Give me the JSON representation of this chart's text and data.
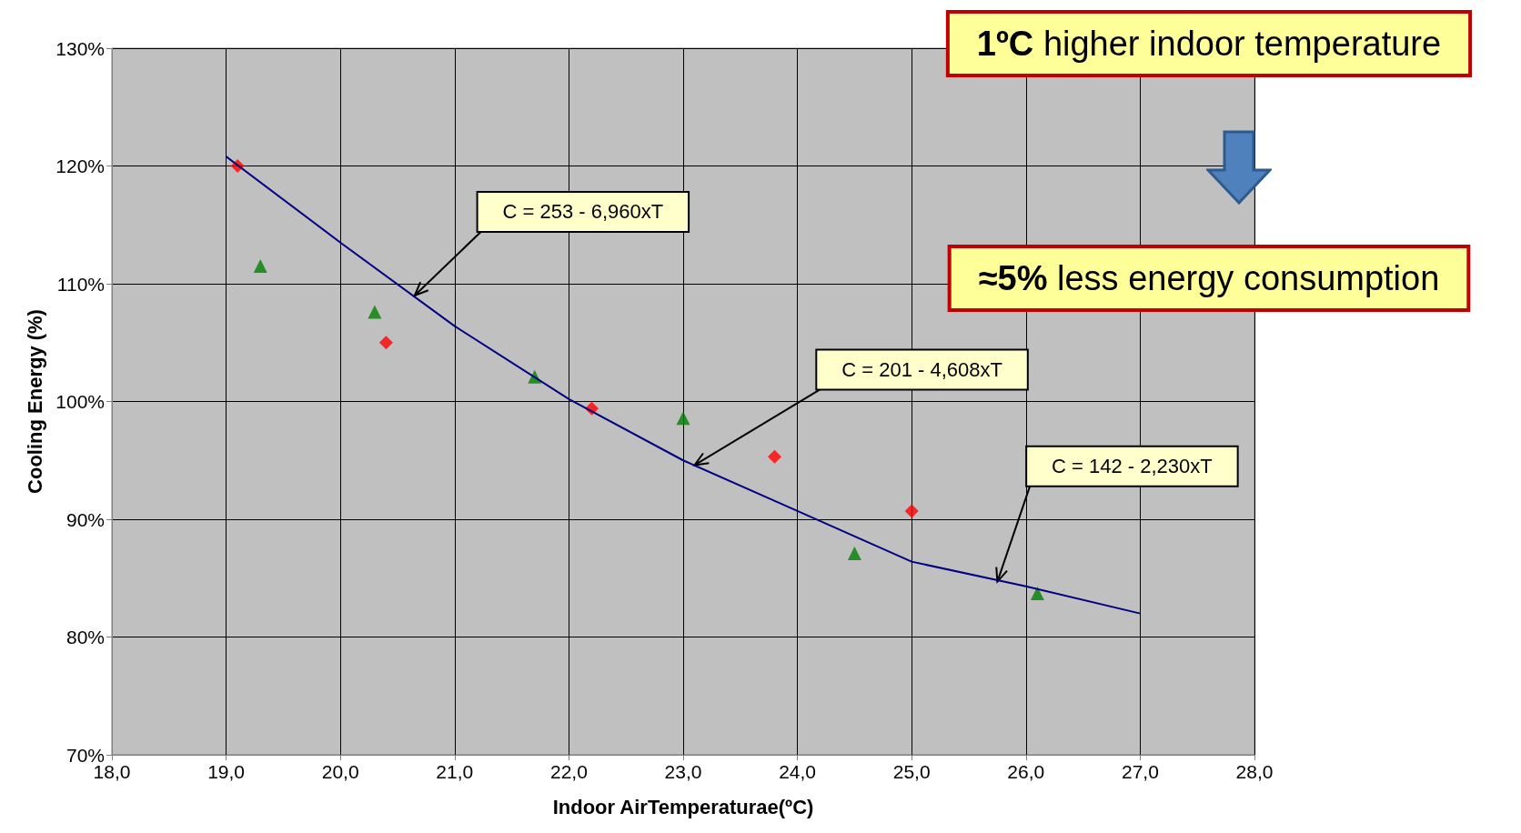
{
  "chart_data": {
    "type": "scatter",
    "xlabel": "Indoor AirTemperaturae(ºC)",
    "ylabel": "Cooling Energy (%)",
    "xlim": [
      18,
      28
    ],
    "ylim": [
      70,
      130
    ],
    "xticks": [
      {
        "value": 18,
        "label": "18,0"
      },
      {
        "value": 19,
        "label": "19,0"
      },
      {
        "value": 20,
        "label": "20,0"
      },
      {
        "value": 21,
        "label": "21,0"
      },
      {
        "value": 22,
        "label": "22,0"
      },
      {
        "value": 23,
        "label": "23,0"
      },
      {
        "value": 24,
        "label": "24,0"
      },
      {
        "value": 25,
        "label": "25,0"
      },
      {
        "value": 26,
        "label": "26,0"
      },
      {
        "value": 27,
        "label": "27,0"
      },
      {
        "value": 28,
        "label": "28,0"
      }
    ],
    "yticks": [
      {
        "value": 70,
        "label": "70%"
      },
      {
        "value": 80,
        "label": "80%"
      },
      {
        "value": 90,
        "label": "90%"
      },
      {
        "value": 100,
        "label": "100%"
      },
      {
        "value": 110,
        "label": "110%"
      },
      {
        "value": 120,
        "label": "120%"
      },
      {
        "value": 130,
        "label": "130%"
      }
    ],
    "grid": true,
    "series": [
      {
        "marker": "diamond",
        "color": "#ff0000",
        "x": [
          19.1,
          20.4,
          22.2,
          23.8,
          25.0
        ],
        "values": [
          120,
          105,
          99.4,
          95.3,
          90.7
        ]
      },
      {
        "marker": "triangle",
        "color": "#008000",
        "x": [
          19.3,
          20.3,
          21.7,
          23.0,
          24.5,
          26.1
        ],
        "values": [
          111.5,
          107.6,
          102.1,
          98.6,
          87.1,
          83.7
        ]
      },
      {
        "type": "line",
        "marker": "none",
        "color": "#000080",
        "x": [
          19,
          20,
          21,
          22,
          23,
          24,
          25,
          26,
          27
        ],
        "values": [
          120.8,
          113.5,
          106.4,
          100.2,
          95.0,
          90.7,
          86.4,
          84.3,
          82.0
        ]
      }
    ],
    "annotations": [
      {
        "text": "C = 253 - 6,960xT",
        "x": 20.65,
        "y": 109
      },
      {
        "text": "C = 201 - 4,608xT",
        "x": 23.1,
        "y": 94.6
      },
      {
        "text": "C = 142 - 2,230xT",
        "x": 25.75,
        "y": 84.7
      },
      "1ºC higher indoor temperature",
      "≈5% less energy consumption"
    ]
  }
}
